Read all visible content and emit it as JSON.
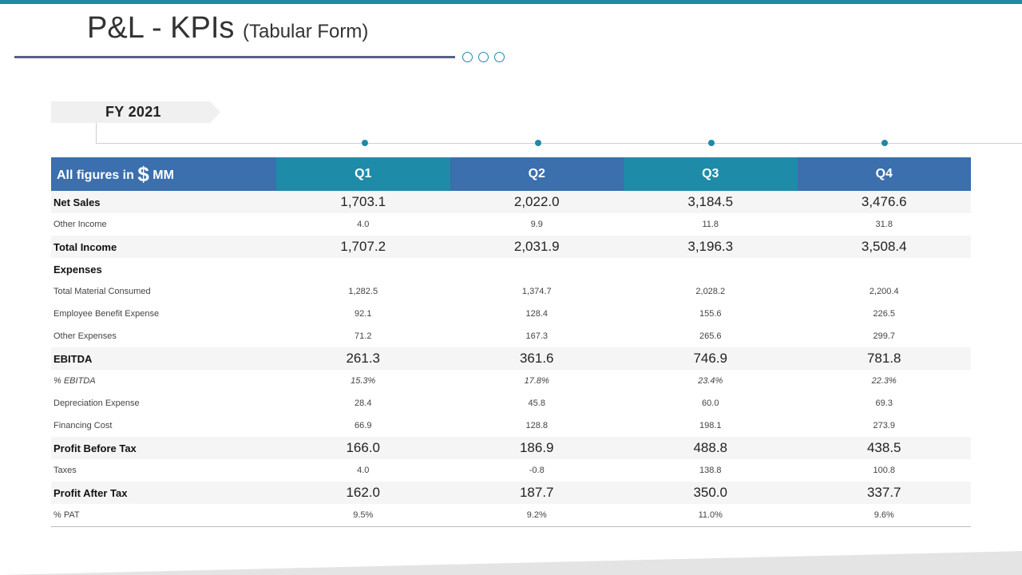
{
  "slide": {
    "title": "P&L - KPIs",
    "subtitle": "(Tabular Form)",
    "fy_label": "FY  2021"
  },
  "table": {
    "header": {
      "label_prefix": "All figures in ",
      "currency": "$",
      "label_suffix": " MM",
      "quarters": [
        "Q1",
        "Q2",
        "Q3",
        "Q4"
      ]
    },
    "rows": [
      {
        "label": "Net Sales",
        "values": [
          "1,703.1",
          "2,022.0",
          "3,184.5",
          "3,476.6"
        ],
        "style": "major"
      },
      {
        "label": "Other  Income",
        "values": [
          "4.0",
          "9.9",
          "11.8",
          "31.8"
        ],
        "style": "minor"
      },
      {
        "label": "Total Income",
        "values": [
          "1,707.2",
          "2,031.9",
          "3,196.3",
          "3,508.4"
        ],
        "style": "major"
      },
      {
        "label": "Expenses",
        "values": [
          "",
          "",
          "",
          ""
        ],
        "style": "section"
      },
      {
        "label": "Total Material Consumed",
        "values": [
          "1,282.5",
          "1,374.7",
          "2,028.2",
          "2,200.4"
        ],
        "style": "minor"
      },
      {
        "label": "Employee  Benefit  Expense",
        "values": [
          "92.1",
          "128.4",
          "155.6",
          "226.5"
        ],
        "style": "minor"
      },
      {
        "label": "Other  Expenses",
        "values": [
          "71.2",
          "167.3",
          "265.6",
          "299.7"
        ],
        "style": "minor"
      },
      {
        "label": "EBITDA",
        "values": [
          "261.3",
          "361.6",
          "746.9",
          "781.8"
        ],
        "style": "major"
      },
      {
        "label": "% EBITDA",
        "values": [
          "15.3%",
          "17.8%",
          "23.4%",
          "22.3%"
        ],
        "style": "italic"
      },
      {
        "label": "Depreciation Expense",
        "values": [
          "28.4",
          "45.8",
          "60.0",
          "69.3"
        ],
        "style": "minor"
      },
      {
        "label": "Financing Cost",
        "values": [
          "66.9",
          "128.8",
          "198.1",
          "273.9"
        ],
        "style": "minor"
      },
      {
        "label": "Profit Before Tax",
        "values": [
          "166.0",
          "186.9",
          "488.8",
          "438.5"
        ],
        "style": "major"
      },
      {
        "label": "Taxes",
        "values": [
          "4.0",
          "-0.8",
          "138.8",
          "100.8"
        ],
        "style": "minor"
      },
      {
        "label": "Profit After Tax",
        "values": [
          "162.0",
          "187.7",
          "350.0",
          "337.7"
        ],
        "style": "major"
      },
      {
        "label": "% PAT",
        "values": [
          "9.5%",
          "9.2%",
          "11.0%",
          "9.6%"
        ],
        "style": "minor"
      }
    ]
  },
  "colors": {
    "accent_teal": "#1f8aa6",
    "header_blue": "#3b6fad",
    "header_teal": "#1e8ba8",
    "title_underline": "#5b5f8a"
  }
}
